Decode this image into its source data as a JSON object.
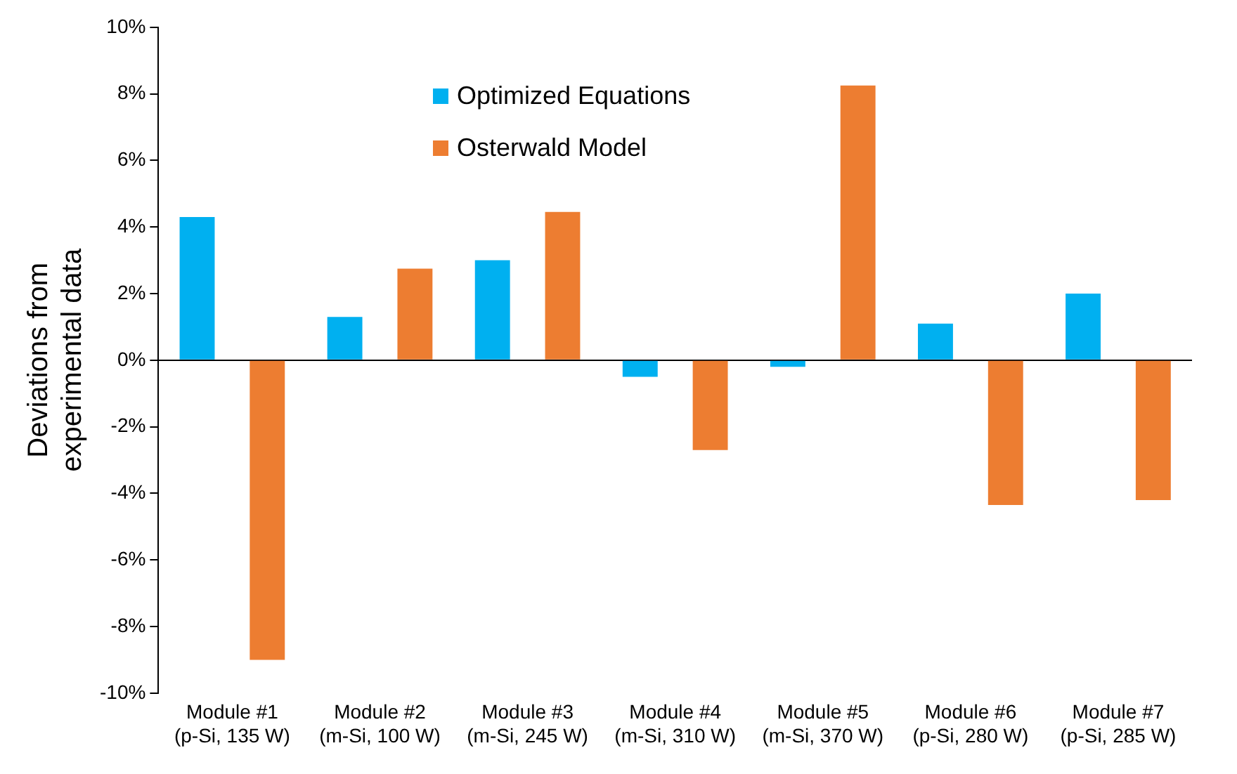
{
  "chart_data": {
    "type": "bar",
    "ylabel": "Deviations from experimental data",
    "categories": [
      "Module #1 (p-Si, 135 W)",
      "Module #2 (m-Si, 100 W)",
      "Module #3 (m-Si, 245 W)",
      "Module #4 (m-Si, 310 W)",
      "Module #5 (m-Si, 370 W)",
      "Module #6 (p-Si, 280 W)",
      "Module #7 (p-Si, 285 W)"
    ],
    "series": [
      {
        "name": "Optimized Equations",
        "color": "#00b0f0",
        "values": [
          4.3,
          1.3,
          3.0,
          -0.5,
          -0.2,
          1.1,
          2.0
        ]
      },
      {
        "name": "Osterwald Model",
        "color": "#ed7d31",
        "values": [
          -9.0,
          2.75,
          4.45,
          -2.7,
          8.25,
          -4.35,
          -4.2
        ]
      }
    ],
    "ylim": [
      -10,
      10
    ],
    "yticks": [
      {
        "value": -10,
        "label": "-10%"
      },
      {
        "value": -8,
        "label": "-8%"
      },
      {
        "value": -6,
        "label": "-6%"
      },
      {
        "value": -4,
        "label": "-4%"
      },
      {
        "value": -2,
        "label": "-2%"
      },
      {
        "value": 0,
        "label": "0%"
      },
      {
        "value": 2,
        "label": "2%"
      },
      {
        "value": 4,
        "label": "4%"
      },
      {
        "value": 6,
        "label": "6%"
      },
      {
        "value": 8,
        "label": "8%"
      },
      {
        "value": 10,
        "label": "10%"
      }
    ],
    "ref_lines": [
      {
        "axis": "y",
        "value": 0,
        "color": "#000000"
      }
    ],
    "grid": false,
    "legend": "top"
  }
}
